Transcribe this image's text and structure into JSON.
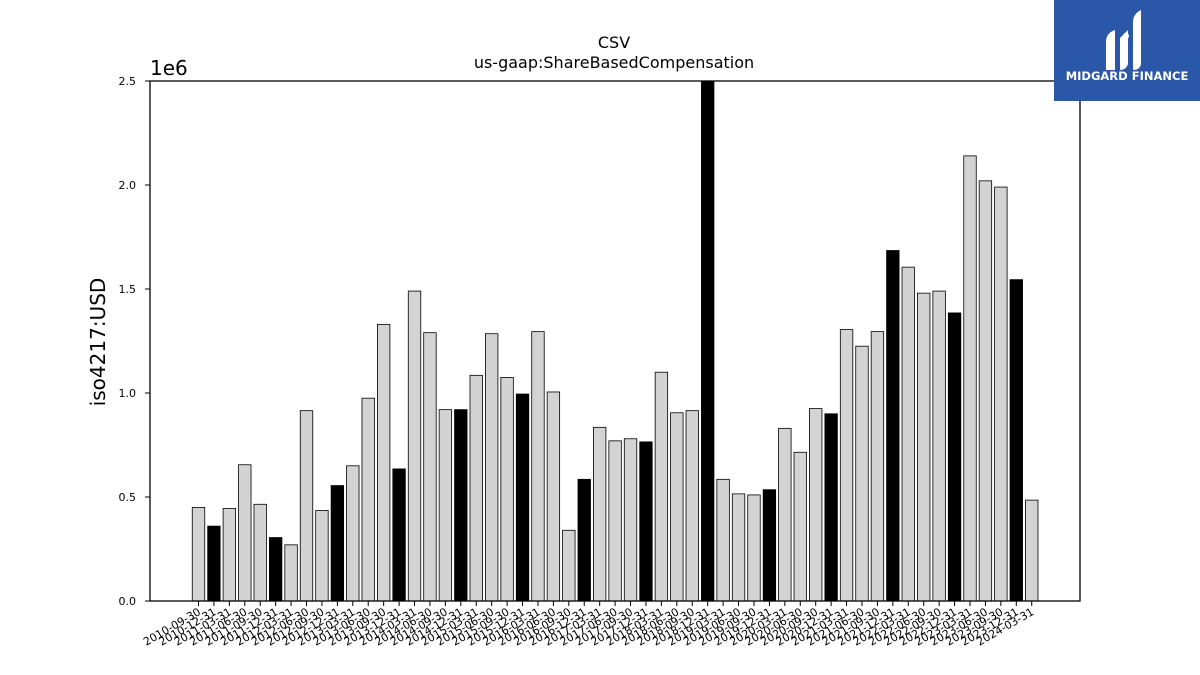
{
  "logo": {
    "text": "MIDGARD FINANCE",
    "bg_color": "#2b57a8"
  },
  "chart_data": {
    "type": "bar",
    "title": "CSV",
    "subtitle": "us-gaap:ShareBasedCompensation",
    "ylabel": "iso4217:USD",
    "xlabel": "",
    "scale_label": "1e6",
    "ylim": [
      0,
      2500000
    ],
    "yticks": [
      0,
      500000,
      1000000,
      1500000,
      2000000,
      2500000
    ],
    "ytick_labels": [
      "0.0",
      "0.5",
      "1.0",
      "1.5",
      "2.0",
      "2.5"
    ],
    "colors": {
      "quarter": "#d3d3d3",
      "annual": "#000000",
      "edge": "#000000"
    },
    "categories": [
      "2010-09-30",
      "2010-12-31",
      "2011-03-31",
      "2011-06-30",
      "2011-09-30",
      "2011-12-31",
      "2012-03-31",
      "2012-06-30",
      "2012-09-30",
      "2012-12-31",
      "2013-03-31",
      "2013-06-30",
      "2013-09-30",
      "2013-12-31",
      "2014-03-31",
      "2014-06-30",
      "2014-09-30",
      "2014-12-31",
      "2015-03-31",
      "2015-06-30",
      "2015-09-30",
      "2015-12-31",
      "2016-03-31",
      "2016-06-30",
      "2016-09-30",
      "2016-12-31",
      "2017-03-31",
      "2017-06-30",
      "2017-09-30",
      "2017-12-31",
      "2018-03-31",
      "2018-06-30",
      "2018-09-30",
      "2018-12-31",
      "2019-03-31",
      "2019-06-30",
      "2019-09-30",
      "2019-12-31",
      "2020-03-31",
      "2020-06-30",
      "2020-09-30",
      "2020-12-31",
      "2021-03-31",
      "2021-06-30",
      "2021-09-30",
      "2021-12-31",
      "2022-03-31",
      "2022-06-30",
      "2022-09-30",
      "2022-12-31",
      "2023-03-31",
      "2023-06-30",
      "2023-09-30",
      "2023-12-31",
      "2024-03-31"
    ],
    "xtick_labels": [
      "2010-09-30",
      "2010-12-31",
      "2011-03-31",
      "2011-06-30",
      "2011-09-30",
      "2011-12-31",
      "2012-03-31",
      "2012-06-30",
      "2012-09-30",
      "2012-12-31",
      "2013-03-31",
      "2013-06-30",
      "2013-09-30",
      "2013-12-31",
      "2014-03-31",
      "2014-06-30",
      "2014-09-30",
      "2014-12-31",
      "2015-03-31",
      "2015-06-30",
      "2015-09-30",
      "2015-12-31",
      "2016-03-31",
      "2016-06-30",
      "2016-09-30",
      "2016-12-31",
      "2017-03-31",
      "2017-06-30",
      "2017-09-30",
      "2017-12-31",
      "2018-03-31",
      "2018-06-30",
      "2018-09-30",
      "2018-12-31",
      "2019-03-31",
      "2019-06-30",
      "2019-09-30",
      "2019-12-31",
      "2020-03-31",
      "2020-06-30",
      "2020-09-30",
      "2020-12-31",
      "2021-03-31",
      "2021-06-30",
      "2021-09-30",
      "2021-12-31",
      "2022-03-31",
      "2022-06-30",
      "2022-09-30",
      "2022-12-31",
      "2023-03-31",
      "2023-06-30",
      "2023-09-30",
      "2023-12-31",
      "2024-03-31"
    ],
    "values": [
      450000,
      360000,
      445000,
      655000,
      465000,
      305000,
      270000,
      915000,
      435000,
      555000,
      650000,
      975000,
      1330000,
      635000,
      1490000,
      1290000,
      920000,
      920000,
      1085000,
      1285000,
      1075000,
      995000,
      1295000,
      1005000,
      340000,
      585000,
      835000,
      770000,
      780000,
      765000,
      1100000,
      905000,
      915000,
      2520000,
      585000,
      515000,
      510000,
      535000,
      830000,
      715000,
      925000,
      900000,
      1305000,
      1225000,
      1295000,
      1685000,
      1605000,
      1480000,
      1490000,
      1385000,
      2140000,
      2020000,
      1990000,
      1545000,
      485000
    ],
    "annual": [
      false,
      true,
      false,
      false,
      false,
      true,
      false,
      false,
      false,
      true,
      false,
      false,
      false,
      true,
      false,
      false,
      false,
      true,
      false,
      false,
      false,
      true,
      false,
      false,
      false,
      true,
      false,
      false,
      false,
      true,
      false,
      false,
      false,
      true,
      false,
      false,
      false,
      true,
      false,
      false,
      false,
      true,
      false,
      false,
      false,
      true,
      false,
      false,
      false,
      true,
      false,
      false,
      false,
      true,
      false
    ]
  }
}
